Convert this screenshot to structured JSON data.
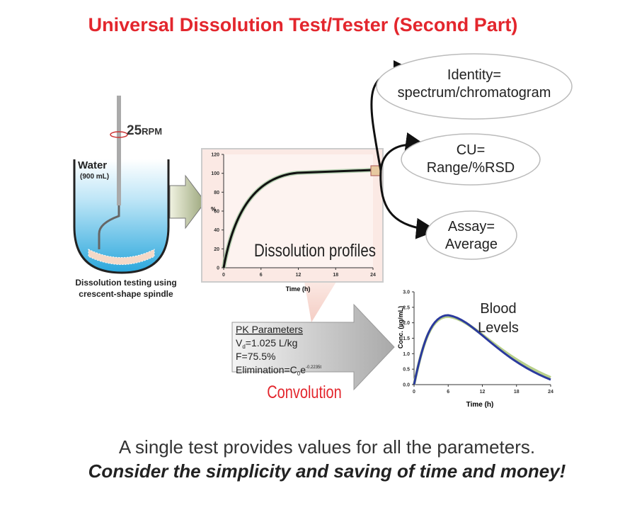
{
  "title": "Universal Dissolution Test/Tester (Second Part)",
  "vessel": {
    "rpm": "25",
    "rpm_unit": "RPM",
    "medium": "Water",
    "volume": "(900 mL)",
    "caption": [
      "Dissolution testing using",
      "crescent-shape spindle"
    ]
  },
  "dissolution_chart": {
    "yticks": [
      "120",
      "100",
      "80",
      "60",
      "40",
      "20",
      "0"
    ],
    "xticks": [
      "0",
      "6",
      "12",
      "18",
      "24"
    ],
    "y_label": "%",
    "x_label": "Time (h)",
    "label": "Dissolution profiles"
  },
  "outcomes": [
    {
      "lines": [
        "Identity=",
        "spectrum/chromatogram"
      ]
    },
    {
      "lines": [
        "CU=",
        "Range/%RSD"
      ]
    },
    {
      "lines": [
        "Assay=",
        "Average"
      ]
    }
  ],
  "pk": {
    "title": "PK Parameters",
    "vd": [
      "V",
      "d",
      "=1.025 L/kg"
    ],
    "f": "F=75.5%",
    "elimination": [
      "Elimination=C",
      "0",
      "e",
      "-0.2235t"
    ],
    "label": "Convolution"
  },
  "blood_chart": {
    "yticks": [
      "3.0",
      "2.5",
      "2.0",
      "1.5",
      "1.0",
      "0.5",
      "0.0"
    ],
    "xticks": [
      "0",
      "6",
      "12",
      "18",
      "24"
    ],
    "y_label": "Conc. (µg/mL)",
    "x_label": "Time (h)",
    "label": [
      "Blood",
      "Levels"
    ]
  },
  "footer": [
    "A single test provides values for all the parameters.",
    "Consider the simplicity and saving of time and money!"
  ]
}
